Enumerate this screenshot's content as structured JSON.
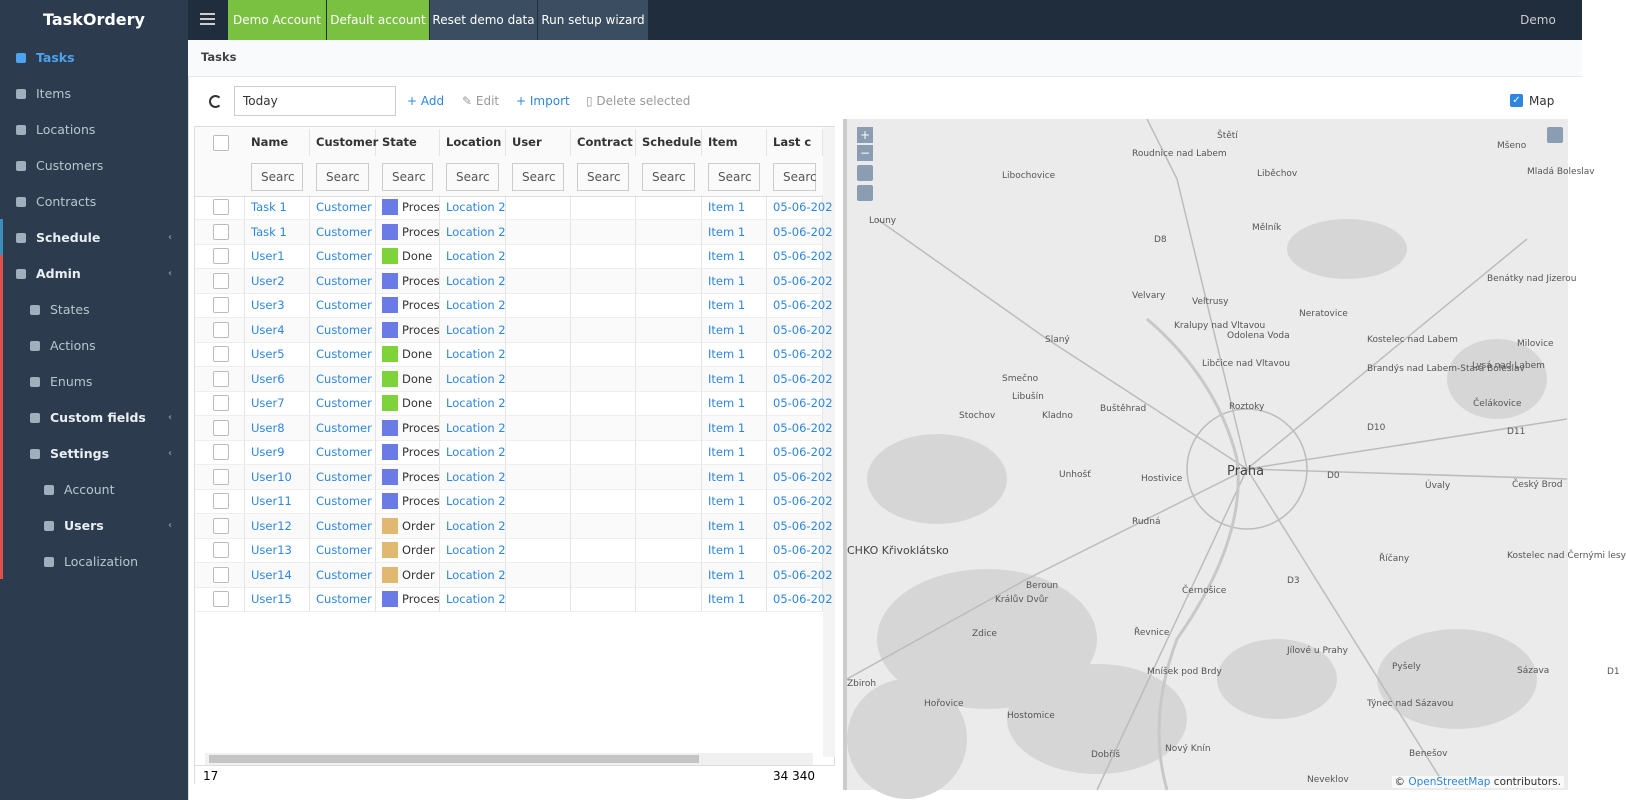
{
  "sidebar": {
    "brand": "TaskOrdery",
    "menu": [
      {
        "label": "Tasks"
      },
      {
        "label": "Items"
      },
      {
        "label": "Locations"
      },
      {
        "label": "Customers"
      },
      {
        "label": "Contracts"
      },
      {
        "label": "Schedule"
      },
      {
        "label": "Admin"
      },
      {
        "label": "States"
      },
      {
        "label": "Actions"
      },
      {
        "label": "Enums"
      },
      {
        "label": "Custom fields"
      },
      {
        "label": "Settings"
      },
      {
        "label": "Account"
      },
      {
        "label": "Users"
      },
      {
        "label": "Localization"
      }
    ]
  },
  "topbar": {
    "buttons": [
      "Demo Account",
      "Default account",
      "Reset demo data",
      "Run setup wizard"
    ],
    "user": "Demo"
  },
  "breadcrumb": "Tasks",
  "toolbar": {
    "filter": "Today",
    "add": "Add",
    "edit": "Edit",
    "import": "Import",
    "delete": "Delete selected",
    "map": "Map"
  },
  "table": {
    "columns": [
      "Name",
      "Customer",
      "State",
      "Location",
      "User",
      "Contract",
      "Schedule",
      "Item",
      "Last c"
    ],
    "search": "Searc",
    "rows": [
      {
        "name": "Task 1",
        "customer": "Customer",
        "state": "Proces",
        "color": "#6b7be6",
        "location": "Location 2",
        "item": "Item 1",
        "last_change": "05-06-202"
      },
      {
        "name": "Task 1",
        "customer": "Customer",
        "state": "Proces",
        "color": "#6b7be6",
        "location": "Location 2",
        "item": "Item 1",
        "last_change": "05-06-202"
      },
      {
        "name": "User1",
        "customer": "Customer",
        "state": "Done",
        "color": "#7ed23a",
        "location": "Location 2",
        "item": "Item 1",
        "last_change": "05-06-202"
      },
      {
        "name": "User2",
        "customer": "Customer",
        "state": "Proces",
        "color": "#6b7be6",
        "location": "Location 2",
        "item": "Item 1",
        "last_change": "05-06-202"
      },
      {
        "name": "User3",
        "customer": "Customer",
        "state": "Proces",
        "color": "#6b7be6",
        "location": "Location 2",
        "item": "Item 1",
        "last_change": "05-06-202"
      },
      {
        "name": "User4",
        "customer": "Customer",
        "state": "Proces",
        "color": "#6b7be6",
        "location": "Location 2",
        "item": "Item 1",
        "last_change": "05-06-202"
      },
      {
        "name": "User5",
        "customer": "Customer",
        "state": "Done",
        "color": "#7ed23a",
        "location": "Location 2",
        "item": "Item 1",
        "last_change": "05-06-202"
      },
      {
        "name": "User6",
        "customer": "Customer",
        "state": "Done",
        "color": "#7ed23a",
        "location": "Location 2",
        "item": "Item 1",
        "last_change": "05-06-202"
      },
      {
        "name": "User7",
        "customer": "Customer",
        "state": "Done",
        "color": "#7ed23a",
        "location": "Location 2",
        "item": "Item 1",
        "last_change": "05-06-202"
      },
      {
        "name": "User8",
        "customer": "Customer",
        "state": "Proces",
        "color": "#6b7be6",
        "location": "Location 2",
        "item": "Item 1",
        "last_change": "05-06-202"
      },
      {
        "name": "User9",
        "customer": "Customer",
        "state": "Proces",
        "color": "#6b7be6",
        "location": "Location 2",
        "item": "Item 1",
        "last_change": "05-06-202"
      },
      {
        "name": "User10",
        "customer": "Customer",
        "state": "Proces",
        "color": "#6b7be6",
        "location": "Location 2",
        "item": "Item 1",
        "last_change": "05-06-202"
      },
      {
        "name": "User11",
        "customer": "Customer",
        "state": "Proces",
        "color": "#6b7be6",
        "location": "Location 2",
        "item": "Item 1",
        "last_change": "05-06-202"
      },
      {
        "name": "User12",
        "customer": "Customer",
        "state": "Order",
        "color": "#e0b872",
        "location": "Location 2",
        "item": "Item 1",
        "last_change": "05-06-202"
      },
      {
        "name": "User13",
        "customer": "Customer",
        "state": "Order",
        "color": "#e0b872",
        "location": "Location 2",
        "item": "Item 1",
        "last_change": "05-06-202"
      },
      {
        "name": "User14",
        "customer": "Customer",
        "state": "Order",
        "color": "#e0b872",
        "location": "Location 2",
        "item": "Item 1",
        "last_change": "05-06-202"
      },
      {
        "name": "User15",
        "customer": "Customer",
        "state": "Proces",
        "color": "#6b7be6",
        "location": "Location 2",
        "item": "Item 1",
        "last_change": "05-06-202"
      }
    ],
    "footer": {
      "count": "17",
      "total": "34 340"
    }
  },
  "map": {
    "labels": [
      "Štětí",
      "Roudnice nad Labem",
      "Mšeno",
      "Libochovice",
      "Liběchov",
      "Mladá Boleslav",
      "Louny",
      "Mělník",
      "Benátky nad Jizerou",
      "Velvary",
      "Veltrusy",
      "Neratovice",
      "Kralupy nad Vltavou",
      "Odolena Voda",
      "Kostelec nad Labem",
      "Slaný",
      "Milovice",
      "Brandýs nad Labem-Stará Boleslav",
      "Lysá nad Labem",
      "Libčice nad Vltavou",
      "Smečno",
      "Libušín",
      "Buštěhrad",
      "Roztoky",
      "Čelákovice",
      "Stochov",
      "Kladno",
      "Praha",
      "Unhošť",
      "Hostivice",
      "Úvaly",
      "Český Brod",
      "Rudná",
      "CHKO Křivoklátsko",
      "Kostelec nad Černými lesy",
      "Říčany",
      "Beroun",
      "Černošice",
      "Králův Dvůr",
      "Zdice",
      "Řevnice",
      "Jílové u Prahy",
      "Hořovice",
      "Hostomice",
      "Mníšek pod Brdy",
      "Týnec nad Sázavou",
      "Sázava",
      "Pyšely",
      "Benešov",
      "Nový Knín",
      "Dobříš",
      "Neveklov",
      "Zbiroh",
      "D8",
      "D10",
      "D11",
      "D0",
      "D1",
      "D3"
    ],
    "attribution": {
      "prefix": "©",
      "link": "OpenStreetMap",
      "suffix": "contributors."
    }
  }
}
